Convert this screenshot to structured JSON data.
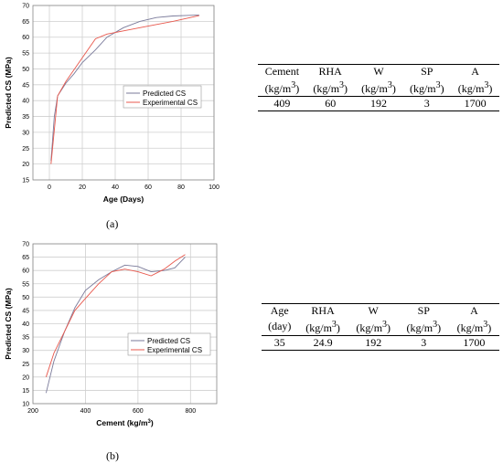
{
  "chart_data": [
    {
      "type": "line",
      "caption": "(a)",
      "xlabel": "Age (Days)",
      "ylabel": "Predicted CS (MPa)",
      "xlim": [
        -10,
        100
      ],
      "ylim": [
        15,
        70
      ],
      "xticks": [
        0,
        20,
        40,
        60,
        80,
        100
      ],
      "yticks": [
        15,
        20,
        25,
        30,
        35,
        40,
        45,
        50,
        55,
        60,
        65,
        70
      ],
      "grid": true,
      "legend_position": "center-left",
      "series": [
        {
          "name": "Predicted CS",
          "color": "#7a7a9a",
          "x": [
            1,
            3,
            5,
            10,
            15,
            20,
            28,
            35,
            45,
            55,
            65,
            75,
            85,
            91
          ],
          "y": [
            21,
            35,
            41.5,
            45.5,
            48.5,
            52,
            56,
            60,
            63,
            65,
            66.2,
            66.7,
            66.9,
            67
          ]
        },
        {
          "name": "Experimental CS",
          "color": "#e8584d",
          "x": [
            1,
            5,
            10,
            28,
            35,
            45,
            60,
            75,
            91
          ],
          "y": [
            20,
            41.5,
            46,
            59.5,
            61,
            62,
            63.5,
            65,
            66.8
          ]
        }
      ]
    },
    {
      "type": "line",
      "caption": "(b)",
      "xlabel": "Cement (kg/m",
      "xlabel_sup": "3",
      "xlabel_end": ")",
      "ylabel": "Predicted CS (MPa)",
      "xlim": [
        200,
        900
      ],
      "ylim": [
        10,
        70
      ],
      "xticks": [
        200,
        400,
        600,
        800
      ],
      "yticks": [
        10,
        15,
        20,
        25,
        30,
        35,
        40,
        45,
        50,
        55,
        60,
        65,
        70
      ],
      "grid": true,
      "legend_position": "center-right",
      "series": [
        {
          "name": "Predicted CS",
          "color": "#7a7a9a",
          "x": [
            250,
            280,
            320,
            360,
            400,
            450,
            500,
            550,
            600,
            650,
            700,
            740,
            780
          ],
          "y": [
            14,
            26,
            37,
            46,
            52.5,
            56.5,
            59.5,
            62,
            61.5,
            59.5,
            60,
            61,
            65
          ]
        },
        {
          "name": "Experimental CS",
          "color": "#e8584d",
          "x": [
            250,
            280,
            360,
            400,
            450,
            500,
            550,
            600,
            650,
            700,
            740,
            780
          ],
          "y": [
            20,
            29,
            45,
            49.5,
            55,
            59.5,
            60.5,
            59.5,
            58,
            60.5,
            63.5,
            66
          ]
        }
      ]
    }
  ],
  "tables": [
    {
      "headers": [
        "Cement",
        "RHA",
        "W",
        "SP",
        "A"
      ],
      "unit_prefix": "(kg/m",
      "unit_sup": "3",
      "unit_suffix": ")",
      "values": [
        "409",
        "60",
        "192",
        "3",
        "1700"
      ]
    },
    {
      "headers": [
        "Age",
        "RHA",
        "W",
        "SP",
        "A"
      ],
      "first_unit": "(day)",
      "unit_prefix": "(kg/m",
      "unit_sup": "3",
      "unit_suffix": ")",
      "values": [
        "35",
        "24.9",
        "192",
        "3",
        "1700"
      ]
    }
  ]
}
